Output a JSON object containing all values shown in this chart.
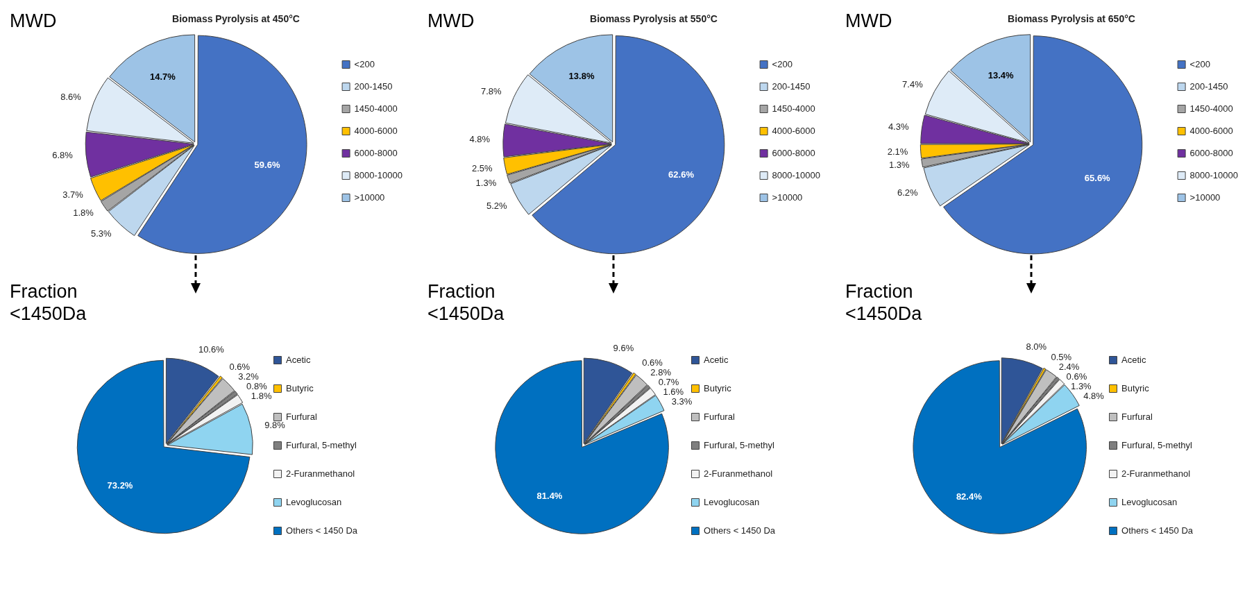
{
  "chart_data": [
    {
      "type": "pie",
      "title": "Biomass Pyrolysis at 450°C",
      "categories": [
        "<200",
        "200-1450",
        "1450-4000",
        "4000-6000",
        "6000-8000",
        "8000-10000",
        ">10000"
      ],
      "values": [
        59.6,
        5.3,
        1.8,
        3.7,
        6.8,
        8.6,
        14.7
      ],
      "value_labels": [
        "59.6%",
        "5.3%",
        "1.8%",
        "3.7%",
        "6.8%",
        "8.6%",
        "14.7%"
      ],
      "colors": [
        "#4472c4",
        "#bdd7ee",
        "#a5a5a5",
        "#ffc000",
        "#7030a0",
        "#deebf7",
        "#9dc3e6"
      ],
      "legend": "right",
      "annotations": [
        "MWD"
      ]
    },
    {
      "type": "pie",
      "title": "Biomass Pyrolysis at 550°C",
      "categories": [
        "<200",
        "200-1450",
        "1450-4000",
        "4000-6000",
        "6000-8000",
        "8000-10000",
        ">10000"
      ],
      "values": [
        62.6,
        5.2,
        1.3,
        2.5,
        4.8,
        7.8,
        13.8
      ],
      "value_labels": [
        "62.6%",
        "5.2%",
        "1.3%",
        "2.5%",
        "4.8%",
        "7.8%",
        "13.8%"
      ],
      "colors": [
        "#4472c4",
        "#bdd7ee",
        "#a5a5a5",
        "#ffc000",
        "#7030a0",
        "#deebf7",
        "#9dc3e6"
      ],
      "legend": "right",
      "annotations": [
        "MWD"
      ]
    },
    {
      "type": "pie",
      "title": "Biomass Pyrolysis at 650°C",
      "categories": [
        "<200",
        "200-1450",
        "1450-4000",
        "4000-6000",
        "6000-8000",
        "8000-10000",
        ">10000"
      ],
      "values": [
        65.6,
        6.2,
        1.3,
        2.1,
        4.3,
        7.4,
        13.4
      ],
      "value_labels": [
        "65.6%",
        "6.2%",
        "1.3%",
        "2.1%",
        "4.3%",
        "7.4%",
        "13.4%"
      ],
      "colors": [
        "#4472c4",
        "#bdd7ee",
        "#a5a5a5",
        "#ffc000",
        "#7030a0",
        "#deebf7",
        "#9dc3e6"
      ],
      "legend": "right",
      "annotations": [
        "MWD"
      ]
    },
    {
      "type": "pie",
      "categories": [
        "Acetic",
        "Butyric",
        "Furfural",
        "Furfural, 5-methyl",
        "2-Furanmethanol",
        "Levoglucosan",
        "Others < 1450 Da"
      ],
      "values": [
        10.6,
        0.6,
        3.2,
        0.8,
        1.8,
        9.8,
        73.2
      ],
      "value_labels": [
        "10.6%",
        "0.6%",
        "3.2%",
        "0.8%",
        "1.8%",
        "9.8%",
        "73.2%"
      ],
      "colors": [
        "#2f5597",
        "#ffc000",
        "#bfbfbf",
        "#7f7f7f",
        "#f2f2f2",
        "#8fd4f0",
        "#0070c0"
      ],
      "legend": "right",
      "annotations": [
        "Fraction <1450Da"
      ]
    },
    {
      "type": "pie",
      "categories": [
        "Acetic",
        "Butyric",
        "Furfural",
        "Furfural, 5-methyl",
        "2-Furanmethanol",
        "Levoglucosan",
        "Others < 1450 Da"
      ],
      "values": [
        9.6,
        0.6,
        2.8,
        0.7,
        1.6,
        3.3,
        81.4
      ],
      "value_labels": [
        "9.6%",
        "0.6%",
        "2.8%",
        "0.7%",
        "1.6%",
        "3.3%",
        "81.4%"
      ],
      "colors": [
        "#2f5597",
        "#ffc000",
        "#bfbfbf",
        "#7f7f7f",
        "#f2f2f2",
        "#8fd4f0",
        "#0070c0"
      ],
      "legend": "right",
      "annotations": [
        "Fraction <1450Da"
      ]
    },
    {
      "type": "pie",
      "categories": [
        "Acetic",
        "Butyric",
        "Furfural",
        "Furfural, 5-methyl",
        "2-Furanmethanol",
        "Levoglucosan",
        "Others < 1450 Da"
      ],
      "values": [
        8.0,
        0.5,
        2.4,
        0.6,
        1.3,
        4.8,
        82.4
      ],
      "value_labels": [
        "8.0%",
        "0.5%",
        "2.4%",
        "0.6%",
        "1.3%",
        "4.8%",
        "82.4%"
      ],
      "colors": [
        "#2f5597",
        "#ffc000",
        "#bfbfbf",
        "#7f7f7f",
        "#f2f2f2",
        "#8fd4f0",
        "#0070c0"
      ],
      "legend": "right",
      "annotations": [
        "Fraction <1450Da"
      ]
    }
  ]
}
